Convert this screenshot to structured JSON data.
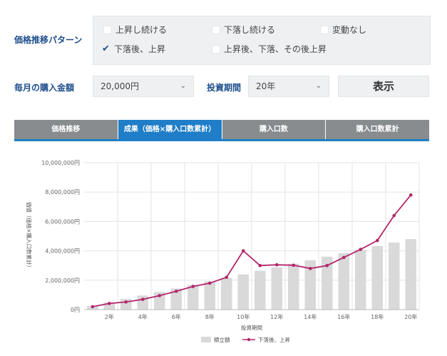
{
  "form": {
    "pattern_label": "価格推移パターン",
    "patterns": [
      {
        "label": "上昇し続ける",
        "checked": false
      },
      {
        "label": "下落し続ける",
        "checked": false
      },
      {
        "label": "変動なし",
        "checked": false
      },
      {
        "label": "下落後、上昇",
        "checked": true
      },
      {
        "label": "上昇後、下落、その後上昇",
        "checked": false
      }
    ],
    "amount_label": "毎月の購入金額",
    "amount_value": "20,000円",
    "period_label": "投資期間",
    "period_value": "20年",
    "show_button": "表示"
  },
  "tabs": [
    {
      "label": "価格推移",
      "active": false
    },
    {
      "label": "成果（価格×購入口数累計）",
      "active": true
    },
    {
      "label": "購入口数",
      "active": false
    },
    {
      "label": "購入口数累計",
      "active": false
    }
  ],
  "colors": {
    "accent": "#1f7ec7",
    "line": "#b3266b",
    "bar": "#d9d9d9",
    "label": "#1f4e8c"
  },
  "chart_data": {
    "type": "bar+line",
    "xlabel": "投資期間",
    "ylabel": "価値（価格×購入口数累計）",
    "ylim": [
      0,
      10000000
    ],
    "yticks": [
      "0円",
      "2,000,000円",
      "4,000,000円",
      "6,000,000円",
      "8,000,000円",
      "10,000,000円"
    ],
    "ytick_values": [
      0,
      2000000,
      4000000,
      6000000,
      8000000,
      10000000
    ],
    "xticks": [
      "2年",
      "4年",
      "6年",
      "8年",
      "10年",
      "12年",
      "14年",
      "16年",
      "18年",
      "20年"
    ],
    "x": [
      1,
      2,
      3,
      4,
      5,
      6,
      7,
      8,
      9,
      10,
      11,
      12,
      13,
      14,
      15,
      16,
      17,
      18,
      19,
      20
    ],
    "series": [
      {
        "name": "積立額",
        "type": "bar",
        "values": [
          240000,
          480000,
          720000,
          960000,
          1200000,
          1440000,
          1680000,
          1920000,
          2160000,
          2400000,
          2640000,
          2880000,
          3120000,
          3360000,
          3600000,
          3840000,
          4080000,
          4320000,
          4560000,
          4800000
        ]
      },
      {
        "name": "下落後、上昇",
        "type": "line",
        "values": [
          200000,
          420000,
          520000,
          700000,
          950000,
          1250000,
          1580000,
          1800000,
          2200000,
          4000000,
          3000000,
          3050000,
          3020000,
          2800000,
          3000000,
          3550000,
          4100000,
          4700000,
          6400000,
          7800000
        ]
      }
    ],
    "legend": "bottom",
    "grid": true
  }
}
